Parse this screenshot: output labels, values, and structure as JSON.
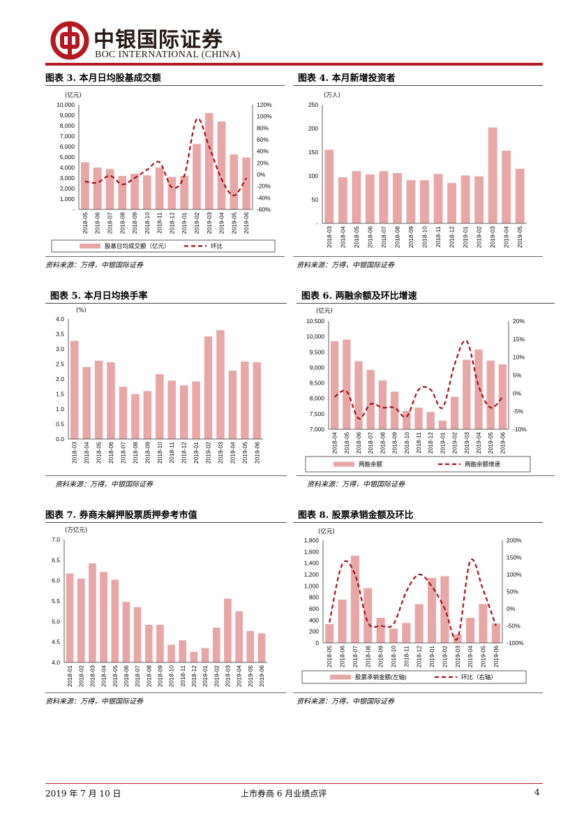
{
  "header": {
    "logo_cn": "中银国际证券",
    "logo_en": "BOC INTERNATIONAL (CHINA)"
  },
  "colors": {
    "brand_red": "#b3191f",
    "bar": "#e8a6a6",
    "line": "#a50f15"
  },
  "source_text": "资料来源：万得，中银国际证券",
  "charts": [
    {
      "panel_title": "图表 3. 本月日均股基成交额",
      "chart_data": {
        "type": "bar+line",
        "unit_left": "(亿元)",
        "categories": [
          "2018-05",
          "2018-06",
          "2018-07",
          "2018-08",
          "2018-09",
          "2018-10",
          "2018-11",
          "2018-12",
          "2019-01",
          "2019-02",
          "2019-03",
          "2019-04",
          "2019-05",
          "2019-06"
        ],
        "left_ticks": [
          "10,000",
          "9,000",
          "8,000",
          "7,000",
          "6,000",
          "5,000",
          "4,000",
          "3,000",
          "2,000",
          "1,000",
          "-"
        ],
        "right_ticks": [
          "120%",
          "100%",
          "80%",
          "60%",
          "40%",
          "20%",
          "0%",
          "-20%",
          "-40%",
          "-60%"
        ],
        "ylim_left": [
          0,
          10000
        ],
        "ylim_right": [
          -60,
          120
        ],
        "series": [
          {
            "name": "股基日均成交额（亿元）",
            "type": "bar",
            "axis": "left",
            "values": [
              4500,
              4000,
              3850,
              3200,
              3400,
              3250,
              4000,
              3100,
              3200,
              6250,
              9200,
              8400,
              5250,
              4950
            ]
          },
          {
            "name": "环比",
            "type": "line",
            "axis": "right",
            "values": [
              -12,
              -14,
              -2,
              -17,
              -6,
              8,
              21,
              -22,
              -2,
              95,
              48,
              -8,
              -36,
              -6
            ]
          }
        ],
        "legend": [
          "股基日均成交额（亿元）",
          "环比"
        ]
      }
    },
    {
      "panel_title": "图表 4. 本月新增投资者",
      "chart_data": {
        "type": "bar",
        "unit_left": "(万人)",
        "categories": [
          "2018-03",
          "2018-04",
          "2018-05",
          "2018-06",
          "2018-07",
          "2018-08",
          "2018-09",
          "2018-10",
          "2018-11",
          "2018-12",
          "2019-01",
          "2019-02",
          "2019-03",
          "2019-04",
          "2019-05"
        ],
        "left_ticks": [
          "250",
          "200",
          "150",
          "100",
          "50",
          "-"
        ],
        "ylim_left": [
          0,
          250
        ],
        "series": [
          {
            "name": "新增投资者",
            "type": "bar",
            "axis": "left",
            "values": [
              155,
              97,
              110,
              103,
              110,
              106,
              91,
              91,
              104,
              85,
              101,
              99,
              202,
              153,
              115
            ]
          }
        ]
      }
    },
    {
      "panel_title": "图表 5. 本月日均换手率",
      "chart_data": {
        "type": "bar",
        "unit_left": "(%)",
        "categories": [
          "2018-03",
          "2018-04",
          "2018-05",
          "2018-06",
          "2018-07",
          "2018-08",
          "2018-09",
          "2018-10",
          "2018-11",
          "2018-12",
          "2019-01",
          "2019-02",
          "2019-03",
          "2019-04",
          "2019-05",
          "2019-06"
        ],
        "left_ticks": [
          "4.0",
          "3.5",
          "3.0",
          "2.5",
          "2.0",
          "1.5",
          "1.0",
          "0.5",
          "0.0"
        ],
        "ylim_left": [
          0,
          4
        ],
        "series": [
          {
            "name": "日均换手率",
            "type": "bar",
            "axis": "left",
            "values": [
              3.27,
              2.4,
              2.61,
              2.56,
              1.74,
              1.5,
              1.6,
              2.16,
              1.95,
              1.79,
              1.92,
              3.42,
              3.63,
              2.28,
              2.58,
              2.56
            ]
          }
        ]
      }
    },
    {
      "panel_title": "图表 6. 两融余额及环比增速",
      "chart_data": {
        "type": "bar+line",
        "unit_left": "(亿元)",
        "categories": [
          "2018-04",
          "2018-05",
          "2018-06",
          "2018-07",
          "2018-08",
          "2018-09",
          "2018-10",
          "2018-11",
          "2018-12",
          "2019-01",
          "2019-02",
          "2019-03",
          "2019-04",
          "2019-05",
          "2019-06"
        ],
        "left_ticks": [
          "10,500",
          "10,000",
          "9,500",
          "9,000",
          "8,500",
          "8,000",
          "7,500",
          "7,000"
        ],
        "right_ticks": [
          "20%",
          "15%",
          "10%",
          "5%",
          "0%",
          "-5%",
          "-10%"
        ],
        "ylim_left": [
          7000,
          10500
        ],
        "ylim_right": [
          -10,
          20
        ],
        "series": [
          {
            "name": "两融余额",
            "type": "bar",
            "axis": "left",
            "values": [
              9850,
              9900,
              9200,
              8920,
              8580,
              8220,
              7600,
              7700,
              7560,
              7280,
              8050,
              9250,
              9580,
              9220,
              9100
            ]
          },
          {
            "name": "两融余额增速",
            "type": "line",
            "axis": "right",
            "values": [
              -1,
              0.5,
              -7,
              -3,
              -4,
              -4,
              -6.5,
              1,
              1,
              -4,
              8,
              14.5,
              2,
              -4,
              -1
            ]
          }
        ],
        "legend": [
          "两融余额",
          "两融余额增速"
        ]
      }
    },
    {
      "panel_title": "图表 7. 券商未解押股票质押参考市值",
      "chart_data": {
        "type": "bar",
        "unit_left": "(万亿元)",
        "categories": [
          "2018-01",
          "2018-02",
          "2018-03",
          "2018-04",
          "2018-05",
          "2018-06",
          "2018-07",
          "2018-08",
          "2018-09",
          "2018-10",
          "2018-11",
          "2018-12",
          "2019-01",
          "2019-02",
          "2019-03",
          "2019-04",
          "2019-05",
          "2019-06"
        ],
        "left_ticks": [
          "7.0",
          "6.5",
          "6.0",
          "5.5",
          "5.0",
          "4.5",
          "4.0"
        ],
        "ylim_left": [
          4,
          7
        ],
        "series": [
          {
            "name": "质押参考市值",
            "type": "bar",
            "axis": "left",
            "values": [
              6.17,
              6.05,
              6.42,
              6.21,
              6.02,
              5.48,
              5.35,
              4.92,
              4.92,
              4.43,
              4.54,
              4.26,
              4.35,
              4.85,
              5.56,
              5.25,
              4.77,
              4.71
            ]
          }
        ]
      }
    },
    {
      "panel_title": "图表 8. 股票承销金额及环比",
      "chart_data": {
        "type": "bar+line",
        "unit_left": "(亿元)",
        "categories": [
          "2018-05",
          "2018-06",
          "2018-07",
          "2018-08",
          "2018-09",
          "2018-10",
          "2018-11",
          "2018-12",
          "2019-01",
          "2019-02",
          "2019-03",
          "2019-04",
          "2019-05",
          "2019-06"
        ],
        "left_ticks": [
          "1,800",
          "1,600",
          "1,400",
          "1,200",
          "1,000",
          "800",
          "600",
          "400",
          "200",
          "0"
        ],
        "right_ticks": [
          "200%",
          "150%",
          "100%",
          "50%",
          "0%",
          "-50%",
          "-100%"
        ],
        "ylim_left": [
          0,
          1800
        ],
        "ylim_right": [
          -100,
          200
        ],
        "series": [
          {
            "name": "股票承销金额(左轴)",
            "type": "bar",
            "axis": "left",
            "values": [
              330,
              760,
              1530,
              960,
              440,
              250,
              350,
              680,
              1140,
              1170,
              150,
              440,
              680,
              340
            ]
          },
          {
            "name": "环比（右轴）",
            "type": "line",
            "axis": "right",
            "values": [
              -40,
              130,
              100,
              -40,
              -50,
              -45,
              50,
              100,
              65,
              0,
              -87,
              140,
              55,
              -50
            ]
          }
        ],
        "legend": [
          "股票承销金额(左轴)",
          "环比（右轴）"
        ]
      }
    }
  ],
  "footer": {
    "date": "2019 年 7 月 10 日",
    "title": "上市券商 6 月业绩点评",
    "page": "4"
  }
}
